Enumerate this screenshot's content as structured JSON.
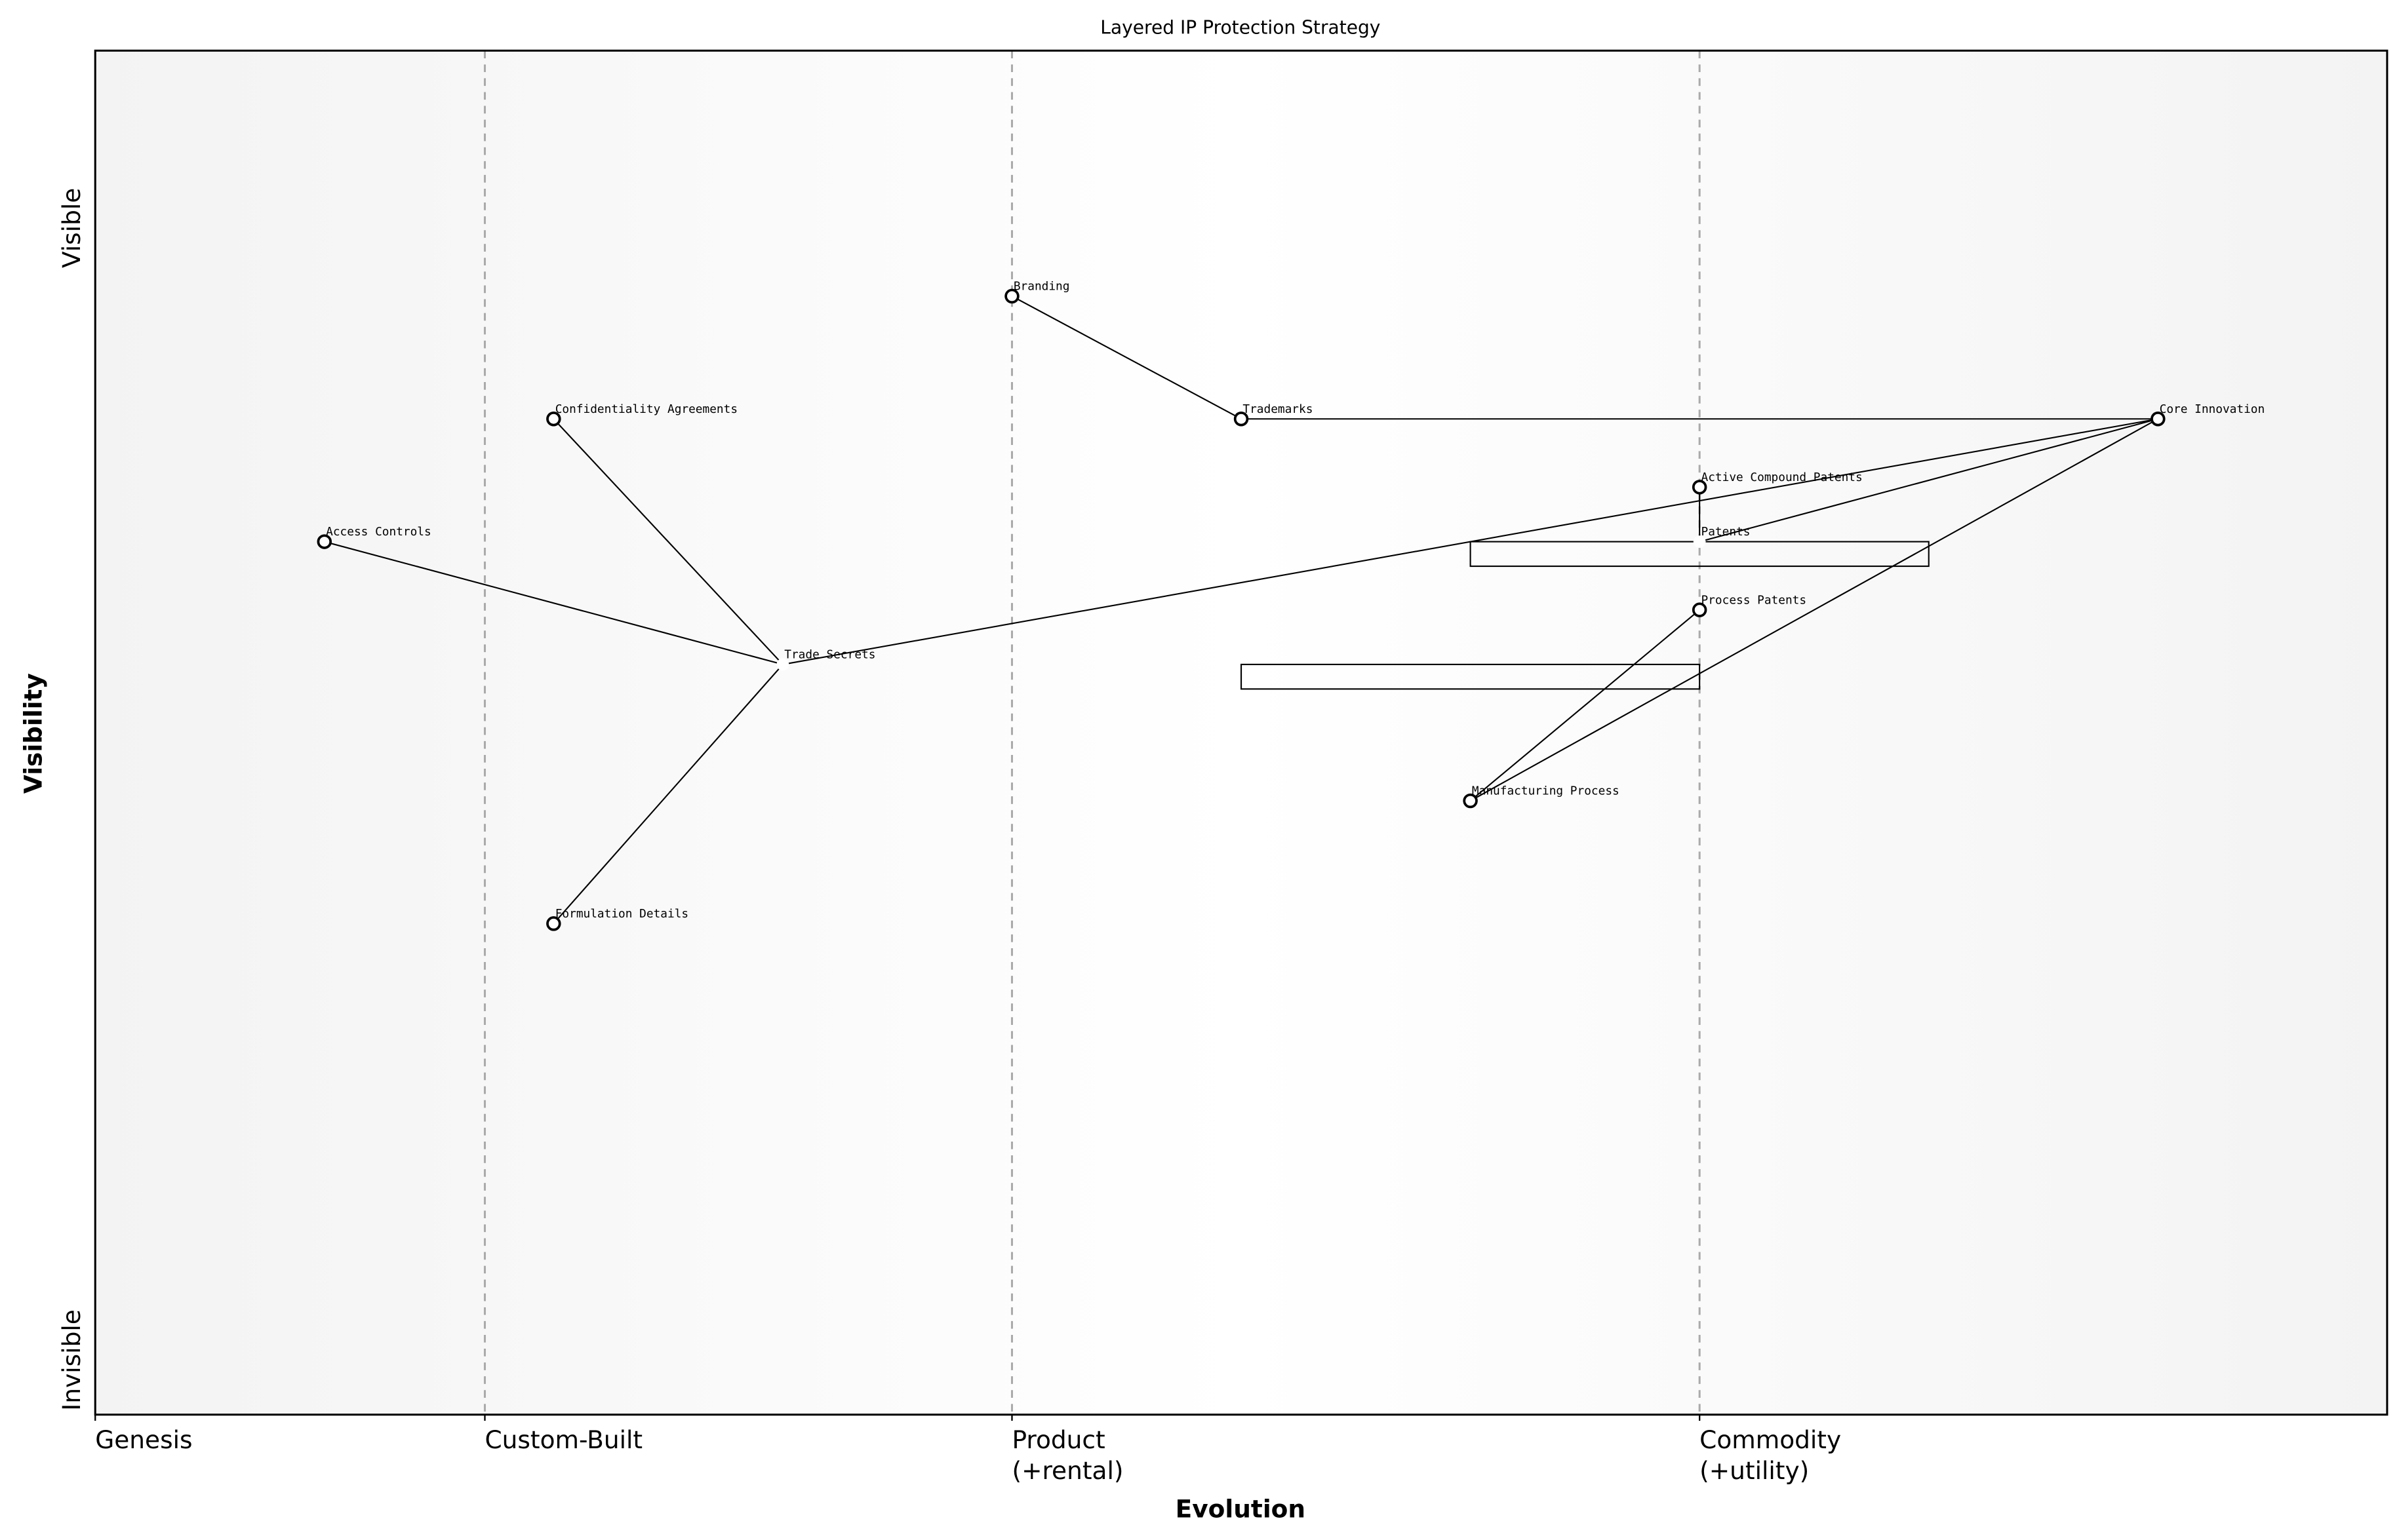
{
  "chart_data": {
    "type": "wardley",
    "title": "Layered IP Protection Strategy",
    "x_label": "Evolution",
    "y_label": "Visibility",
    "xlim": [
      0,
      1
    ],
    "ylim": [
      0,
      1
    ],
    "xticks": [
      {
        "value": 0,
        "label": "Genesis"
      },
      {
        "value": 0.17,
        "label": "Custom-Built"
      },
      {
        "value": 0.4,
        "label": "Product\n(+rental)"
      },
      {
        "value": 0.7,
        "label": "Commodity\n(+utility)"
      }
    ],
    "yticks": [
      {
        "value": 0.04,
        "label": "Invisible"
      },
      {
        "value": 0.87,
        "label": "Visible"
      }
    ],
    "grid": true,
    "components": [
      {
        "name": "Branding",
        "x": 0.4,
        "y": 0.82,
        "marker": true
      },
      {
        "name": "Trademarks",
        "x": 0.5,
        "y": 0.73,
        "marker": true
      },
      {
        "name": "Core Innovation",
        "x": 0.9,
        "y": 0.73,
        "marker": true
      },
      {
        "name": "Confidentiality Agreements",
        "x": 0.2,
        "y": 0.73,
        "marker": true
      },
      {
        "name": "Active Compound Patents",
        "x": 0.7,
        "y": 0.68,
        "marker": true
      },
      {
        "name": "Access Controls",
        "x": 0.1,
        "y": 0.64,
        "marker": true
      },
      {
        "name": "Patents",
        "x": 0.7,
        "y": 0.64,
        "marker": false
      },
      {
        "name": "Process Patents",
        "x": 0.7,
        "y": 0.59,
        "marker": true
      },
      {
        "name": "Trade Secrets",
        "x": 0.3,
        "y": 0.55,
        "marker": false
      },
      {
        "name": "Manufacturing Process",
        "x": 0.6,
        "y": 0.45,
        "marker": true
      },
      {
        "name": "Formulation Details",
        "x": 0.2,
        "y": 0.36,
        "marker": true
      }
    ],
    "links": [
      [
        "Branding",
        "Trademarks"
      ],
      [
        "Trademarks",
        "Core Innovation"
      ],
      [
        "Core Innovation",
        "Trade Secrets"
      ],
      [
        "Core Innovation",
        "Patents"
      ],
      [
        "Core Innovation",
        "Manufacturing Process"
      ],
      [
        "Trade Secrets",
        "Access Controls"
      ],
      [
        "Trade Secrets",
        "Confidentiality Agreements"
      ],
      [
        "Trade Secrets",
        "Formulation Details"
      ],
      [
        "Patents",
        "Active Compound Patents"
      ],
      [
        "Process Patents",
        "Manufacturing Process"
      ]
    ],
    "pipelines": [
      {
        "y": 0.64,
        "x": [
          0.6,
          0.8
        ]
      },
      {
        "y": 0.55,
        "x": [
          0.5,
          0.7
        ]
      }
    ]
  }
}
